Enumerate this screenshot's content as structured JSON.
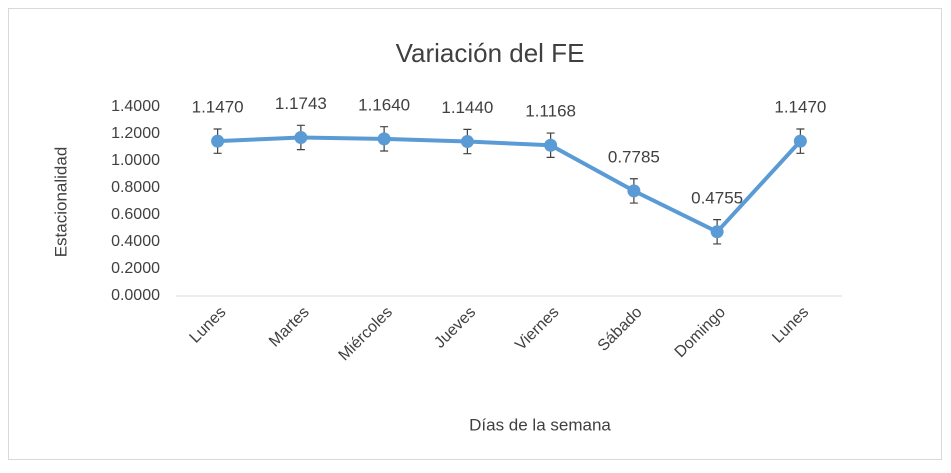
{
  "chart_data": {
    "type": "line",
    "title": "Variación del FE",
    "x_label": "Días de la semana",
    "y_label": "Estacionalidad",
    "categories": [
      "Lunes",
      "Martes",
      "Miércoles",
      "Jueves",
      "Viernes",
      "Sábado",
      "Domingo",
      "Lunes"
    ],
    "series": [
      {
        "name": "FE",
        "color": "#5b9bd5",
        "values": [
          1.147,
          1.1743,
          1.164,
          1.144,
          1.1168,
          0.7785,
          0.4755,
          1.147
        ],
        "value_labels": [
          "1.1470",
          "1.1743",
          "1.1640",
          "1.1440",
          "1.1168",
          "0.7785",
          "0.4755",
          "1.1470"
        ],
        "errors": [
          0.09,
          0.09,
          0.09,
          0.09,
          0.09,
          0.09,
          0.09,
          0.09
        ]
      }
    ],
    "ylim": [
      0,
      1.4
    ],
    "yticks": [
      {
        "value": 0,
        "label": "0.0000"
      },
      {
        "value": 0.2,
        "label": "0.2000"
      },
      {
        "value": 0.4,
        "label": "0.4000"
      },
      {
        "value": 0.6,
        "label": "0.6000"
      },
      {
        "value": 0.8,
        "label": "0.8000"
      },
      {
        "value": 1,
        "label": "1.0000"
      },
      {
        "value": 1.2,
        "label": "1.2000"
      },
      {
        "value": 1.4,
        "label": "1.4000"
      }
    ],
    "grid": false
  }
}
